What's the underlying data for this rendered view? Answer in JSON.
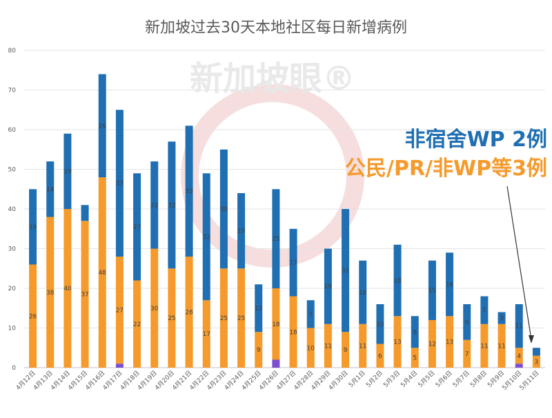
{
  "chart_data": {
    "type": "bar",
    "stacked": true,
    "title": "新加坡过去30天本地社区每日新增病例",
    "ylim": [
      0,
      80
    ],
    "yticks": [
      0,
      10,
      20,
      30,
      40,
      50,
      60,
      70,
      80
    ],
    "grid": true,
    "categories": [
      "4月12日",
      "4月13日",
      "4月14日",
      "4月15日",
      "4月16日",
      "4月17日",
      "4月18日",
      "4月19日",
      "4月20日",
      "4月21日",
      "4月22日",
      "4月23日",
      "4月24日",
      "4月25日",
      "4月26日",
      "4月27日",
      "4月28日",
      "4月29日",
      "4月30日",
      "5月1日",
      "5月2日",
      "5月3日",
      "5月4日",
      "5月5日",
      "5月6日",
      "5月7日",
      "5月8日",
      "5月9日",
      "5月10日",
      "5月11日"
    ],
    "series": [
      {
        "color": "#7b4fd1",
        "values": [
          0,
          0,
          0,
          0,
          0,
          1,
          0,
          0,
          0,
          0,
          0,
          0,
          0,
          0,
          2,
          0,
          0,
          0,
          0,
          0,
          0,
          0,
          0,
          0,
          0,
          0,
          0,
          0,
          1,
          0
        ]
      },
      {
        "color": "#f59a2b",
        "values": [
          26,
          38,
          40,
          37,
          48,
          27,
          22,
          30,
          25,
          28,
          17,
          25,
          25,
          9,
          18,
          18,
          10,
          11,
          9,
          11,
          6,
          13,
          5,
          12,
          13,
          7,
          11,
          11,
          4,
          3
        ]
      },
      {
        "color": "#1f6fb2",
        "values": [
          19,
          14,
          19,
          4,
          26,
          37,
          27,
          22,
          32,
          33,
          32,
          30,
          19,
          12,
          25,
          17,
          7,
          19,
          31,
          16,
          10,
          18,
          8,
          15,
          16,
          9,
          7,
          3,
          11,
          2
        ]
      }
    ],
    "segment_labels": [
      [
        "",
        "",
        "",
        "",
        "",
        "",
        "",
        "",
        "",
        "",
        "",
        "",
        "",
        "",
        "",
        "",
        "",
        "",
        "",
        "",
        "",
        "",
        "",
        "",
        "",
        "",
        "",
        "",
        "",
        ""
      ],
      [
        "26",
        "38",
        "40",
        "37",
        "48",
        "27",
        "22",
        "30",
        "25",
        "28",
        "17",
        "25",
        "25",
        "9",
        "18",
        "18",
        "10",
        "11",
        "9",
        "11",
        "6",
        "13",
        "5",
        "12",
        "13",
        "7",
        "11",
        "11",
        "4",
        "3"
      ],
      [
        "19",
        "14",
        "19",
        "",
        "26",
        "37",
        "27",
        "22",
        "32",
        "33",
        "32",
        "30",
        "19",
        "12",
        "25",
        "17",
        "7",
        "19",
        "31",
        "16",
        "10",
        "18",
        "8",
        "15",
        "16",
        "9",
        "7",
        "3",
        "11",
        ""
      ]
    ],
    "annotations": [
      {
        "text": "非宿舍WP 2例",
        "color": "#1f6fb2"
      },
      {
        "text": "公民/PR/非WP等3例",
        "color": "#f59a2b"
      }
    ],
    "watermark": "新加坡眼®"
  }
}
